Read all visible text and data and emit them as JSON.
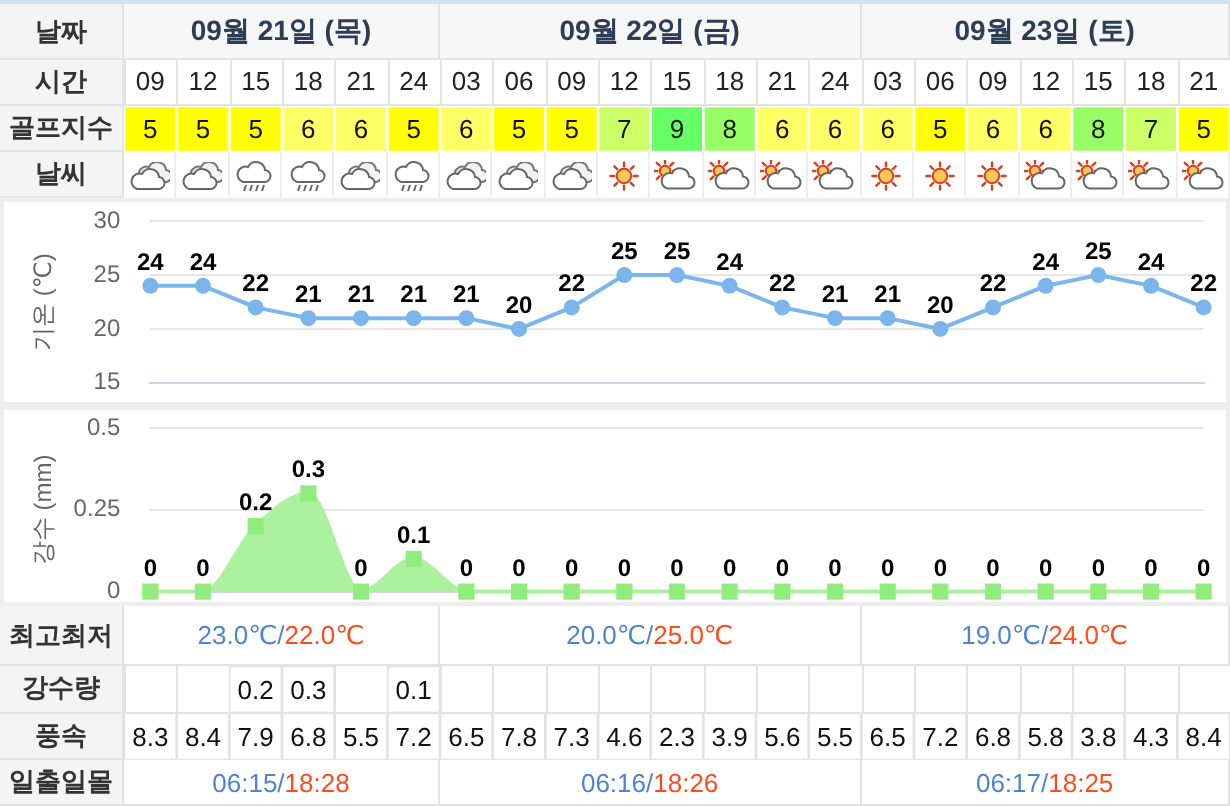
{
  "chart_data": [
    {
      "type": "heatmap",
      "categories": [
        "09",
        "12",
        "15",
        "18",
        "21",
        "24",
        "03",
        "06",
        "09",
        "12",
        "15",
        "18",
        "21",
        "24",
        "03",
        "06",
        "09",
        "12",
        "15",
        "18",
        "21"
      ],
      "xlabel": "시간",
      "y_categories": [
        "골프지수"
      ],
      "cells": [
        [
          5,
          5,
          5,
          6,
          6,
          5,
          6,
          5,
          5,
          7,
          9,
          8,
          6,
          6,
          6,
          5,
          6,
          6,
          8,
          7,
          5
        ]
      ],
      "colors": [
        "#ffff00",
        "#ffff00",
        "#ffff00",
        "#ffff66",
        "#ffff66",
        "#ffff00",
        "#ffff66",
        "#ffff00",
        "#ffff00",
        "#ccff66",
        "#66ff66",
        "#99ff66",
        "#ffff66",
        "#ffff66",
        "#ffff66",
        "#ffff00",
        "#ffff66",
        "#ffff66",
        "#99ff66",
        "#ccff66",
        "#ffff00"
      ],
      "data_labels": true,
      "annotations": [
        "날짜",
        "09월 21일 (목)",
        "09월 22일 (금)",
        "09월 23일 (토)",
        "날씨"
      ]
    },
    {
      "type": "line",
      "categories": [
        "09",
        "12",
        "15",
        "18",
        "21",
        "24",
        "03",
        "06",
        "09",
        "12",
        "15",
        "18",
        "21",
        "24",
        "03",
        "06",
        "09",
        "12",
        "15",
        "18",
        "21"
      ],
      "values": [
        24,
        24,
        22,
        21,
        21,
        21,
        21,
        20,
        22,
        25,
        25,
        24,
        22,
        21,
        21,
        20,
        22,
        24,
        25,
        24,
        22
      ],
      "color": "#7cb5ec",
      "ylabel": "기온 (℃)",
      "ylim": [
        15,
        30
      ],
      "yticks": [
        15,
        20,
        25,
        30
      ],
      "grid": "y",
      "marker": "circle",
      "data_labels": true,
      "tick_labels": "y"
    },
    {
      "type": "area",
      "categories": [
        "09",
        "12",
        "15",
        "18",
        "21",
        "24",
        "03",
        "06",
        "09",
        "12",
        "15",
        "18",
        "21",
        "24",
        "03",
        "06",
        "09",
        "12",
        "15",
        "18",
        "21"
      ],
      "values": [
        0,
        0,
        0.2,
        0.3,
        0,
        0.1,
        0,
        0,
        0,
        0,
        0,
        0,
        0,
        0,
        0,
        0,
        0,
        0,
        0,
        0,
        0
      ],
      "color": "#90ed7d",
      "ylabel": "강수 (mm)",
      "ylim": [
        0,
        0.5
      ],
      "yticks": [
        0,
        0.25,
        0.5
      ],
      "grid": "y",
      "marker": "square",
      "data_labels": true,
      "tick_labels": "y"
    },
    {
      "type": "heatmap",
      "categories": [
        "09",
        "12",
        "15",
        "18",
        "21",
        "24",
        "03",
        "06",
        "09",
        "12",
        "15",
        "18",
        "21",
        "24",
        "03",
        "06",
        "09",
        "12",
        "15",
        "18",
        "21"
      ],
      "tick_labels": "y",
      "y_categories": [
        "강수량",
        "풍속"
      ],
      "cells": [
        [
          null,
          null,
          0.2,
          0.3,
          null,
          0.1,
          null,
          null,
          null,
          null,
          null,
          null,
          null,
          null,
          null,
          null,
          null,
          null,
          null,
          null,
          null
        ],
        [
          8.3,
          8.4,
          7.9,
          6.8,
          5.5,
          7.2,
          6.5,
          7.8,
          7.3,
          4.6,
          2.3,
          3.9,
          5.6,
          5.5,
          6.5,
          7.2,
          6.8,
          5.8,
          3.8,
          4.3,
          8.4
        ]
      ],
      "data_labels": true,
      "annotations": [
        "최고최저",
        "23.0℃/22.0℃",
        "20.0℃/25.0℃",
        "19.0℃/24.0℃",
        "일출일몰",
        "06:15/18:28",
        "06:16/18:26",
        "06:17/18:25"
      ]
    }
  ]
}
